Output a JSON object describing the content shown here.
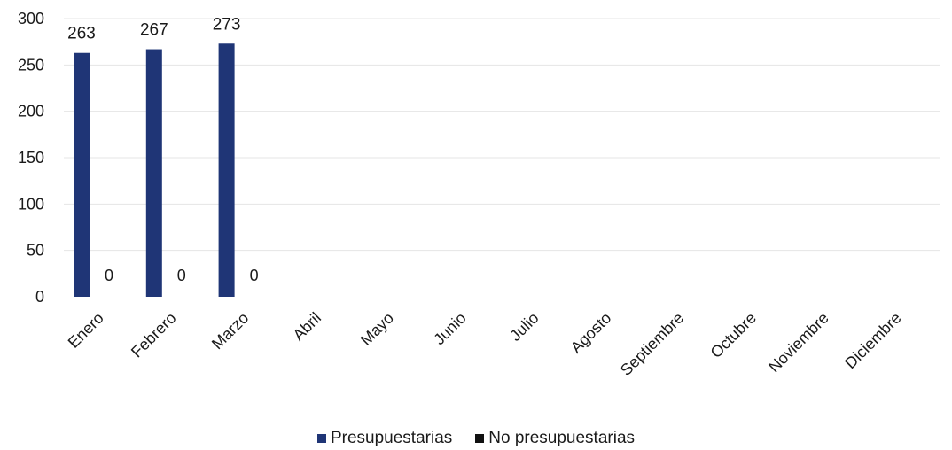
{
  "chart_data": {
    "type": "bar",
    "categories": [
      "Enero",
      "Febrero",
      "Marzo",
      "Abril",
      "Mayo",
      "Junio",
      "Julio",
      "Agosto",
      "Septiembre",
      "Octubre",
      "Noviembre",
      "Diciembre"
    ],
    "series": [
      {
        "name": "Presupuestarias",
        "values": [
          263,
          267,
          273,
          null,
          null,
          null,
          null,
          null,
          null,
          null,
          null,
          null
        ],
        "color": "#1f3576"
      },
      {
        "name": "No presupuestarias",
        "values": [
          0,
          0,
          0,
          null,
          null,
          null,
          null,
          null,
          null,
          null,
          null,
          null
        ],
        "color": "#111111"
      }
    ],
    "data_labels": {
      "Presupuestarias": [
        "263",
        "267",
        "273"
      ],
      "No presupuestarias": [
        "0",
        "0",
        "0"
      ]
    },
    "ylim": [
      0,
      300
    ],
    "yticks": [
      "0",
      "50",
      "100",
      "150",
      "200",
      "250",
      "300"
    ],
    "grid": true,
    "legend_position": "bottom",
    "colors": {
      "grid": "#e4e4e4",
      "text": "#1a1a1a"
    }
  }
}
